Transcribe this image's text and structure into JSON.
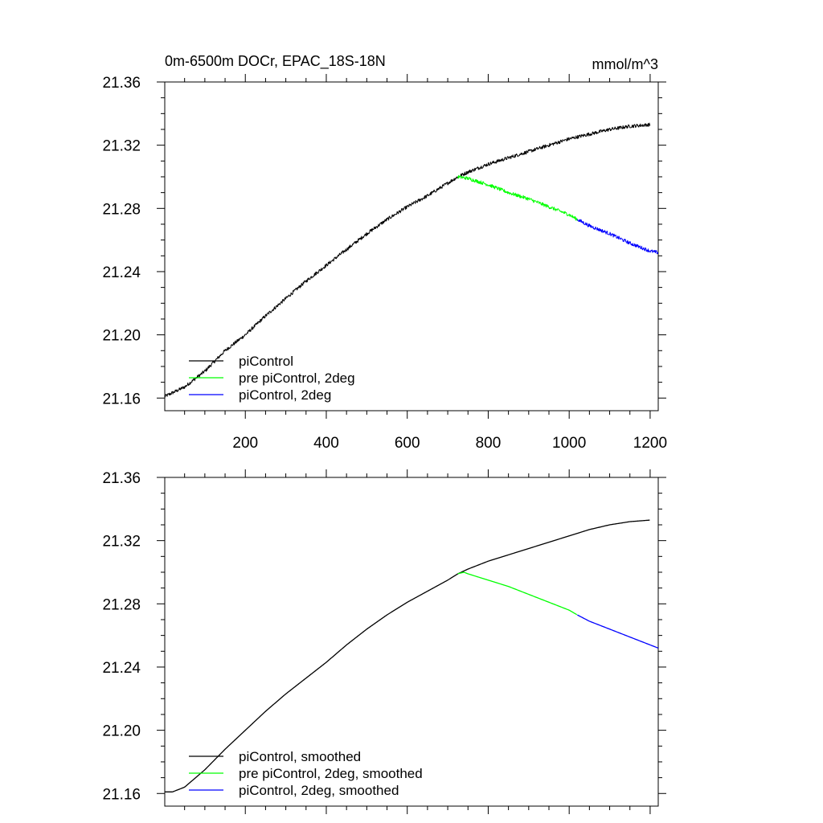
{
  "chart_data": [
    {
      "type": "line",
      "title": "0m-6500m DOCr, EPAC_18S-18N",
      "units": "mmol/m^3",
      "xlim": [
        1,
        1220
      ],
      "ylim": [
        21.152,
        21.36
      ],
      "xticks": [
        200,
        400,
        600,
        800,
        1000,
        1200
      ],
      "xtick_labels": [
        "200",
        "400",
        "600",
        "800",
        "1000",
        "1200"
      ],
      "yticks": [
        21.16,
        21.2,
        21.24,
        21.28,
        21.32,
        21.36
      ],
      "ytick_labels": [
        "21.16",
        "21.20",
        "21.24",
        "21.28",
        "21.32",
        "21.36"
      ],
      "grid": false,
      "legend_position": "bottom-left",
      "series": [
        {
          "name": "piControl",
          "color": "#000000",
          "noisy": true,
          "x": [
            1,
            50,
            100,
            150,
            200,
            250,
            300,
            350,
            400,
            450,
            500,
            550,
            600,
            650,
            700,
            725,
            750,
            800,
            850,
            900,
            950,
            1000,
            1050,
            1100,
            1150,
            1200
          ],
          "y": [
            21.161,
            21.167,
            21.177,
            21.19,
            21.2,
            21.212,
            21.223,
            21.234,
            21.244,
            21.254,
            21.264,
            21.273,
            21.281,
            21.288,
            21.296,
            21.3,
            21.303,
            21.308,
            21.312,
            21.316,
            21.32,
            21.324,
            21.327,
            21.33,
            21.332,
            21.333
          ]
        },
        {
          "name": "pre piControl, 2deg",
          "color": "#00ff00",
          "noisy": true,
          "x": [
            725,
            750,
            800,
            850,
            900,
            950,
            1000,
            1020
          ],
          "y": [
            21.3,
            21.299,
            21.295,
            21.29,
            21.286,
            21.281,
            21.276,
            21.273
          ]
        },
        {
          "name": "piControl, 2deg",
          "color": "#0000ff",
          "noisy": true,
          "x": [
            1020,
            1050,
            1100,
            1150,
            1200,
            1220
          ],
          "y": [
            21.273,
            21.269,
            21.264,
            21.258,
            21.253,
            21.252
          ]
        }
      ]
    },
    {
      "type": "line",
      "xlim": [
        1,
        1220
      ],
      "ylim": [
        21.152,
        21.36
      ],
      "xticks": [
        200,
        400,
        600,
        800,
        1000,
        1200
      ],
      "yticks": [
        21.16,
        21.2,
        21.24,
        21.28,
        21.32,
        21.36
      ],
      "ytick_labels": [
        "21.16",
        "21.20",
        "21.24",
        "21.28",
        "21.32",
        "21.36"
      ],
      "grid": false,
      "legend_position": "bottom-left",
      "series": [
        {
          "name": "piControl, smoothed",
          "color": "#000000",
          "noisy": false,
          "x": [
            1,
            20,
            50,
            100,
            150,
            200,
            250,
            300,
            350,
            400,
            450,
            500,
            550,
            600,
            650,
            700,
            725,
            750,
            800,
            850,
            900,
            950,
            1000,
            1050,
            1100,
            1150,
            1200
          ],
          "y": [
            21.161,
            21.161,
            21.164,
            21.175,
            21.188,
            21.2,
            21.212,
            21.223,
            21.233,
            21.243,
            21.254,
            21.264,
            21.273,
            21.281,
            21.288,
            21.295,
            21.299,
            21.302,
            21.307,
            21.311,
            21.315,
            21.319,
            21.323,
            21.327,
            21.33,
            21.332,
            21.333
          ]
        },
        {
          "name": "pre piControl, 2deg, smoothed",
          "color": "#00ff00",
          "noisy": false,
          "x": [
            725,
            740,
            750,
            800,
            850,
            900,
            950,
            1000,
            1020
          ],
          "y": [
            21.299,
            21.3,
            21.299,
            21.295,
            21.291,
            21.286,
            21.281,
            21.276,
            21.273
          ]
        },
        {
          "name": "piControl, 2deg, smoothed",
          "color": "#0000ff",
          "noisy": false,
          "x": [
            1020,
            1050,
            1100,
            1150,
            1200,
            1220
          ],
          "y": [
            21.273,
            21.269,
            21.264,
            21.259,
            21.254,
            21.252
          ]
        }
      ]
    }
  ]
}
